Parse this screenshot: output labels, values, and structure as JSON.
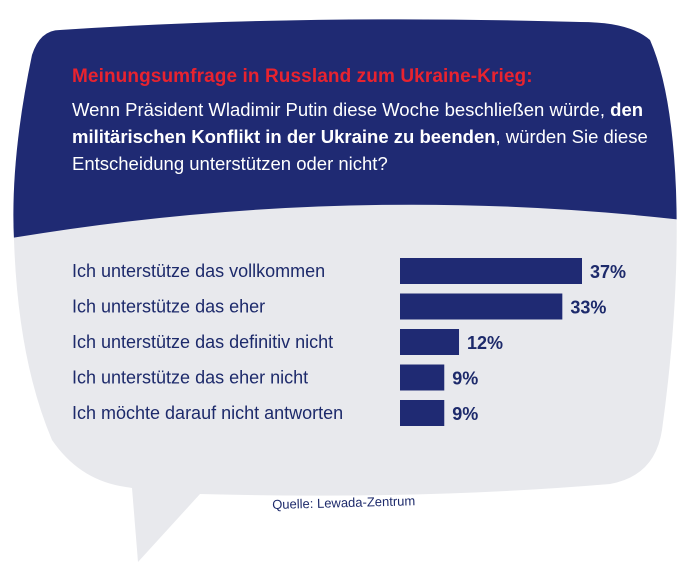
{
  "header": {
    "title": "Meinungsumfrage in Russland zum Ukraine-Krieg:",
    "question_part1": "Wenn Präsident Wladimir Putin diese Woche beschließen würde, ",
    "question_bold": "den militärischen Konflikt in der Ukraine zu beenden",
    "question_part2": ", würden Sie diese Entscheidung unterstützen oder nicht?"
  },
  "colors": {
    "navy": "#1f2a73",
    "red": "#e8232f",
    "bubble_light": "#e8e9ed",
    "bar": "#1f2a73"
  },
  "chart_data": {
    "type": "bar",
    "orientation": "horizontal",
    "categories": [
      "Ich unterstütze das vollkommen",
      "Ich unterstütze das eher",
      "Ich unterstütze das definitiv nicht",
      "Ich unterstütze das eher nicht",
      "Ich möchte darauf nicht antworten"
    ],
    "values": [
      37,
      33,
      12,
      9,
      9
    ],
    "value_labels": [
      "37%",
      "33%",
      "12%",
      "9%",
      "9%"
    ],
    "unit": "%"
  },
  "source": "Quelle: Lewada-Zentrum"
}
